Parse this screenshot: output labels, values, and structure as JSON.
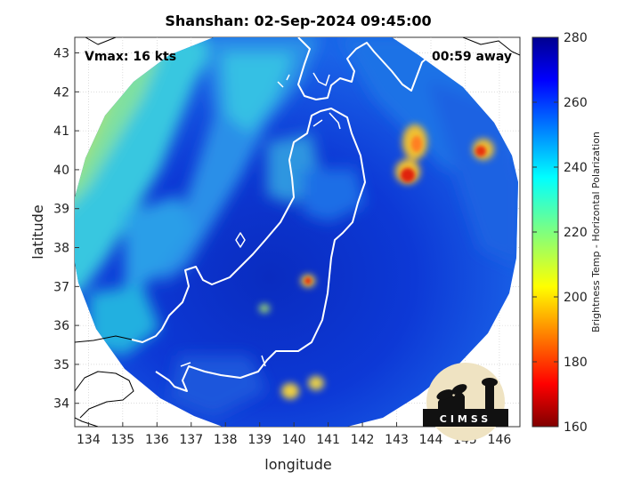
{
  "chart_data": {
    "type": "heatmap",
    "title": "Shanshan: 02-Sep-2024 09:45:00",
    "xlabel": "longitude",
    "ylabel": "latitude",
    "xlim": [
      133.6,
      146.6
    ],
    "ylim": [
      33.4,
      43.4
    ],
    "x_ticks": [
      "134",
      "135",
      "136",
      "137",
      "138",
      "139",
      "140",
      "141",
      "142",
      "143",
      "144",
      "145",
      "146"
    ],
    "y_ticks": [
      "34",
      "35",
      "36",
      "37",
      "38",
      "39",
      "40",
      "41",
      "42",
      "43"
    ],
    "grid": true,
    "annotations": {
      "vmax": "Vmax: 16 kts",
      "time_away": "00:59 away"
    },
    "colorbar": {
      "label": "Brightness Temp - Horizontal Polarization",
      "range": [
        160,
        280
      ],
      "ticks": [
        "160",
        "180",
        "200",
        "220",
        "240",
        "260",
        "280"
      ],
      "colormap": "jet"
    },
    "logo_text": "CIMSS",
    "colors": {
      "background_cold_region": "#0a2fbf",
      "warm_outer": "#2fbfe8",
      "coast": "#ffffff",
      "outside_coast": "#000000"
    }
  }
}
